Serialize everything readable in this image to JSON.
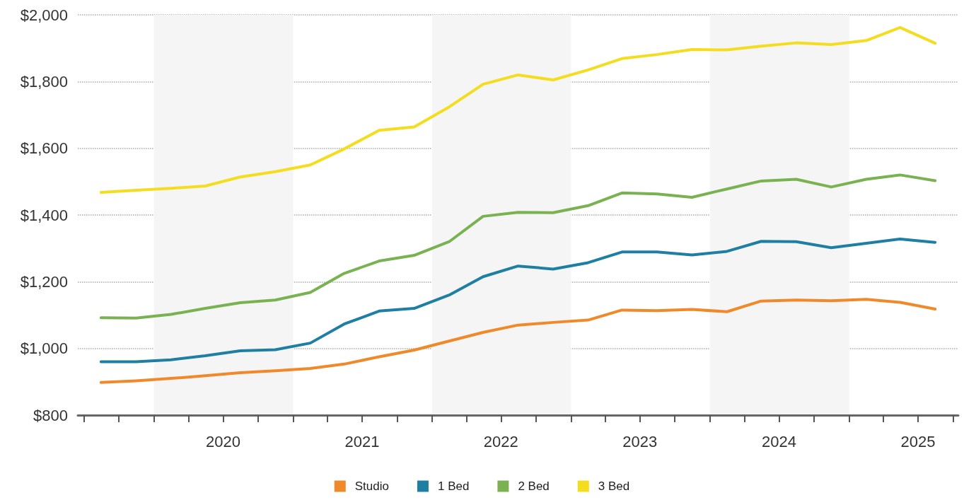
{
  "chart_data": {
    "type": "line",
    "x": [
      "2019-08-15",
      "2019-11-15",
      "2020-02-15",
      "2020-05-15",
      "2020-08-15",
      "2020-11-15",
      "2021-02-15",
      "2021-05-15",
      "2021-08-15",
      "2021-11-15",
      "2022-02-15",
      "2022-05-15",
      "2022-08-15",
      "2022-11-15",
      "2023-02-15",
      "2023-05-15",
      "2023-08-15",
      "2023-11-15",
      "2024-02-15",
      "2024-05-15",
      "2024-08-15",
      "2024-11-15",
      "2025-02-15",
      "2025-05-15",
      "2025-08-15"
    ],
    "series": [
      {
        "name": "Studio",
        "color": "#f0892a",
        "values": [
          898,
          903,
          910,
          918,
          927,
          933,
          940,
          953,
          975,
          995,
          1022,
          1048,
          1070,
          1078,
          1085,
          1115,
          1113,
          1117,
          1110,
          1142,
          1145,
          1143,
          1147,
          1138,
          1118
        ]
      },
      {
        "name": "1 Bed",
        "color": "#1f7fa3",
        "values": [
          960,
          960,
          966,
          978,
          993,
          996,
          1016,
          1073,
          1112,
          1120,
          1160,
          1215,
          1247,
          1238,
          1257,
          1289,
          1289,
          1280,
          1291,
          1321,
          1320,
          1302,
          1315,
          1328,
          1318
        ]
      },
      {
        "name": "2 Bed",
        "color": "#7ab252",
        "values": [
          1092,
          1091,
          1102,
          1120,
          1137,
          1145,
          1168,
          1225,
          1262,
          1279,
          1320,
          1396,
          1408,
          1407,
          1428,
          1466,
          1463,
          1453,
          1478,
          1502,
          1507,
          1484,
          1507,
          1520,
          1503
        ]
      },
      {
        "name": "3 Bed",
        "color": "#f4dd1e",
        "values": [
          1468,
          1474,
          1480,
          1487,
          1514,
          1530,
          1550,
          1598,
          1654,
          1664,
          1724,
          1792,
          1820,
          1805,
          1835,
          1869,
          1881,
          1896,
          1895,
          1906,
          1916,
          1911,
          1923,
          1962,
          1915
        ]
      }
    ],
    "xlim": [
      "2019-06-15",
      "2025-10-15"
    ],
    "xticks": [
      {
        "value": "2019-07-01",
        "label": null
      },
      {
        "value": "2019-10-01",
        "label": null
      },
      {
        "value": "2020-01-01",
        "label": null
      },
      {
        "value": "2020-04-01",
        "label": null
      },
      {
        "value": "2020-07-01",
        "label": "2020"
      },
      {
        "value": "2020-10-01",
        "label": null
      },
      {
        "value": "2021-01-01",
        "label": null
      },
      {
        "value": "2021-04-01",
        "label": null
      },
      {
        "value": "2021-07-01",
        "label": "2021"
      },
      {
        "value": "2021-10-01",
        "label": null
      },
      {
        "value": "2022-01-01",
        "label": null
      },
      {
        "value": "2022-04-01",
        "label": null
      },
      {
        "value": "2022-07-01",
        "label": "2022"
      },
      {
        "value": "2022-10-01",
        "label": null
      },
      {
        "value": "2023-01-01",
        "label": null
      },
      {
        "value": "2023-04-01",
        "label": null
      },
      {
        "value": "2023-07-01",
        "label": "2023"
      },
      {
        "value": "2023-10-01",
        "label": null
      },
      {
        "value": "2024-01-01",
        "label": null
      },
      {
        "value": "2024-04-01",
        "label": null
      },
      {
        "value": "2024-07-01",
        "label": "2024"
      },
      {
        "value": "2024-10-01",
        "label": null
      },
      {
        "value": "2025-01-01",
        "label": null
      },
      {
        "value": "2025-04-01",
        "label": null
      },
      {
        "value": "2025-07-01",
        "label": "2025"
      },
      {
        "value": "2025-10-01",
        "label": null
      }
    ],
    "ylim": [
      800,
      2000
    ],
    "yticks": [
      {
        "value": 800,
        "label": "$800"
      },
      {
        "value": 1000,
        "label": "$1,000"
      },
      {
        "value": 1200,
        "label": "$1,200"
      },
      {
        "value": 1400,
        "label": "$1,400"
      },
      {
        "value": 1600,
        "label": "$1,600"
      },
      {
        "value": 1800,
        "label": "$1,800"
      },
      {
        "value": 2000,
        "label": "$2,000"
      }
    ],
    "bands": [
      {
        "axis": "x",
        "from": "2020-01-01",
        "to": "2021-01-01",
        "color": "#f5f5f5"
      },
      {
        "axis": "x",
        "from": "2022-01-01",
        "to": "2023-01-01",
        "color": "#f5f5f5"
      },
      {
        "axis": "x",
        "from": "2024-01-01",
        "to": "2025-01-01",
        "color": "#f5f5f5"
      }
    ],
    "grid": "y",
    "legend": "bottom",
    "marker": "none",
    "line_style": "solid"
  }
}
